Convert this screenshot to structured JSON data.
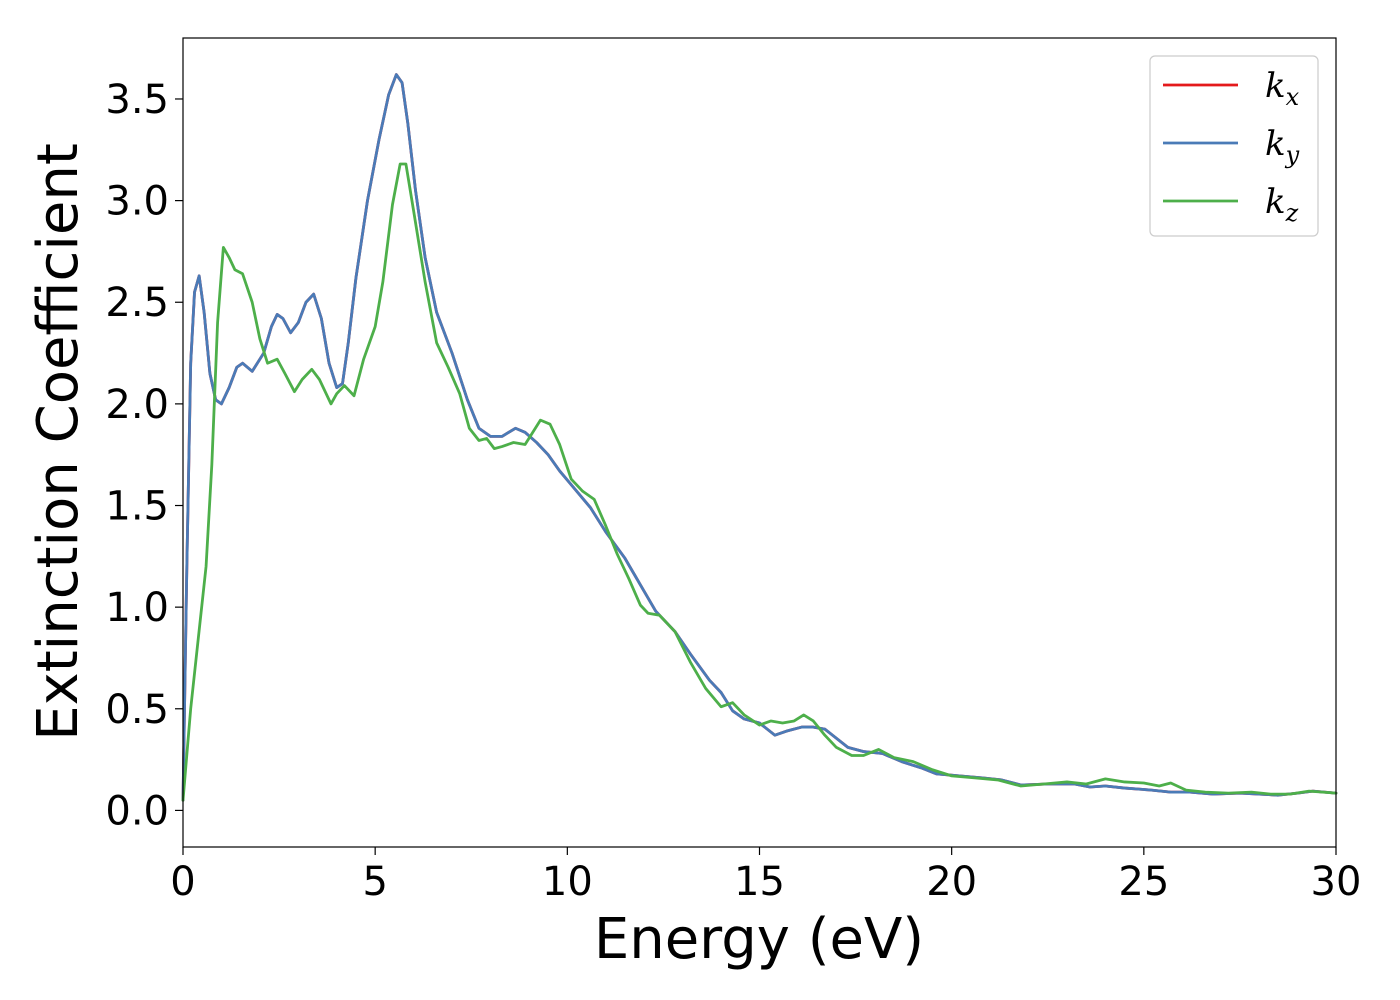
{
  "chart_data": {
    "type": "line",
    "title": "",
    "xlabel": "Energy (eV)",
    "ylabel": "Extinction Coefficient",
    "xlim": [
      0,
      30
    ],
    "ylim": [
      -0.18,
      3.8
    ],
    "x_ticks": [
      "0",
      "5",
      "10",
      "15",
      "20",
      "25",
      "30"
    ],
    "y_ticks": [
      "0.0",
      "0.5",
      "1.0",
      "1.5",
      "2.0",
      "2.5",
      "3.0",
      "3.5"
    ],
    "grid": false,
    "legend_position": "top-right",
    "series": [
      {
        "name": "k_x",
        "legend_base": "k",
        "legend_sub": "x",
        "color": "#e41a1c",
        "points": [
          [
            0,
            0.05
          ],
          [
            0.1,
            1.2
          ],
          [
            0.2,
            2.2
          ],
          [
            0.3,
            2.55
          ],
          [
            0.42,
            2.63
          ],
          [
            0.55,
            2.45
          ],
          [
            0.7,
            2.15
          ],
          [
            0.85,
            2.02
          ],
          [
            1.0,
            2.0
          ],
          [
            1.2,
            2.08
          ],
          [
            1.4,
            2.18
          ],
          [
            1.55,
            2.2
          ],
          [
            1.8,
            2.16
          ],
          [
            2.1,
            2.25
          ],
          [
            2.3,
            2.38
          ],
          [
            2.45,
            2.44
          ],
          [
            2.6,
            2.42
          ],
          [
            2.8,
            2.35
          ],
          [
            3.0,
            2.4
          ],
          [
            3.2,
            2.5
          ],
          [
            3.4,
            2.54
          ],
          [
            3.6,
            2.42
          ],
          [
            3.8,
            2.2
          ],
          [
            4.0,
            2.08
          ],
          [
            4.15,
            2.1
          ],
          [
            4.3,
            2.3
          ],
          [
            4.5,
            2.62
          ],
          [
            4.8,
            3.0
          ],
          [
            5.1,
            3.3
          ],
          [
            5.35,
            3.52
          ],
          [
            5.55,
            3.62
          ],
          [
            5.7,
            3.58
          ],
          [
            5.85,
            3.38
          ],
          [
            6.05,
            3.05
          ],
          [
            6.3,
            2.72
          ],
          [
            6.6,
            2.45
          ],
          [
            7.0,
            2.25
          ],
          [
            7.4,
            2.02
          ],
          [
            7.7,
            1.88
          ],
          [
            8.0,
            1.84
          ],
          [
            8.3,
            1.84
          ],
          [
            8.65,
            1.88
          ],
          [
            8.9,
            1.86
          ],
          [
            9.2,
            1.81
          ],
          [
            9.5,
            1.75
          ],
          [
            9.8,
            1.67
          ],
          [
            10.2,
            1.58
          ],
          [
            10.6,
            1.49
          ],
          [
            11.0,
            1.37
          ],
          [
            11.5,
            1.24
          ],
          [
            11.9,
            1.11
          ],
          [
            12.3,
            0.98
          ],
          [
            12.8,
            0.88
          ],
          [
            13.2,
            0.77
          ],
          [
            13.7,
            0.64
          ],
          [
            14.0,
            0.58
          ],
          [
            14.3,
            0.49
          ],
          [
            14.6,
            0.45
          ],
          [
            15.0,
            0.43
          ],
          [
            15.4,
            0.37
          ],
          [
            15.7,
            0.39
          ],
          [
            16.1,
            0.41
          ],
          [
            16.4,
            0.41
          ],
          [
            16.7,
            0.4
          ],
          [
            16.9,
            0.37
          ],
          [
            17.3,
            0.31
          ],
          [
            17.7,
            0.29
          ],
          [
            18.2,
            0.28
          ],
          [
            18.7,
            0.24
          ],
          [
            19.2,
            0.21
          ],
          [
            19.6,
            0.18
          ],
          [
            20.2,
            0.17
          ],
          [
            20.8,
            0.16
          ],
          [
            21.3,
            0.15
          ],
          [
            21.8,
            0.125
          ],
          [
            22.5,
            0.13
          ],
          [
            23.2,
            0.13
          ],
          [
            23.6,
            0.115
          ],
          [
            24.0,
            0.12
          ],
          [
            24.5,
            0.11
          ],
          [
            25.2,
            0.1
          ],
          [
            25.7,
            0.09
          ],
          [
            26.2,
            0.09
          ],
          [
            26.8,
            0.08
          ],
          [
            27.5,
            0.085
          ],
          [
            28.0,
            0.08
          ],
          [
            28.5,
            0.075
          ],
          [
            29.0,
            0.085
          ],
          [
            29.4,
            0.095
          ],
          [
            30.0,
            0.085
          ]
        ]
      },
      {
        "name": "k_y",
        "legend_base": "k",
        "legend_sub": "y",
        "color": "#4a7bb7",
        "points": [
          [
            0,
            0.05
          ],
          [
            0.1,
            1.2
          ],
          [
            0.2,
            2.2
          ],
          [
            0.3,
            2.55
          ],
          [
            0.42,
            2.63
          ],
          [
            0.55,
            2.45
          ],
          [
            0.7,
            2.15
          ],
          [
            0.85,
            2.02
          ],
          [
            1.0,
            2.0
          ],
          [
            1.2,
            2.08
          ],
          [
            1.4,
            2.18
          ],
          [
            1.55,
            2.2
          ],
          [
            1.8,
            2.16
          ],
          [
            2.1,
            2.25
          ],
          [
            2.3,
            2.38
          ],
          [
            2.45,
            2.44
          ],
          [
            2.6,
            2.42
          ],
          [
            2.8,
            2.35
          ],
          [
            3.0,
            2.4
          ],
          [
            3.2,
            2.5
          ],
          [
            3.4,
            2.54
          ],
          [
            3.6,
            2.42
          ],
          [
            3.8,
            2.2
          ],
          [
            4.0,
            2.08
          ],
          [
            4.15,
            2.1
          ],
          [
            4.3,
            2.3
          ],
          [
            4.5,
            2.62
          ],
          [
            4.8,
            3.0
          ],
          [
            5.1,
            3.3
          ],
          [
            5.35,
            3.52
          ],
          [
            5.55,
            3.62
          ],
          [
            5.7,
            3.58
          ],
          [
            5.85,
            3.38
          ],
          [
            6.05,
            3.05
          ],
          [
            6.3,
            2.72
          ],
          [
            6.6,
            2.45
          ],
          [
            7.0,
            2.25
          ],
          [
            7.4,
            2.02
          ],
          [
            7.7,
            1.88
          ],
          [
            8.0,
            1.84
          ],
          [
            8.3,
            1.84
          ],
          [
            8.65,
            1.88
          ],
          [
            8.9,
            1.86
          ],
          [
            9.2,
            1.81
          ],
          [
            9.5,
            1.75
          ],
          [
            9.8,
            1.67
          ],
          [
            10.2,
            1.58
          ],
          [
            10.6,
            1.49
          ],
          [
            11.0,
            1.37
          ],
          [
            11.5,
            1.24
          ],
          [
            11.9,
            1.11
          ],
          [
            12.3,
            0.98
          ],
          [
            12.8,
            0.88
          ],
          [
            13.2,
            0.77
          ],
          [
            13.7,
            0.64
          ],
          [
            14.0,
            0.58
          ],
          [
            14.3,
            0.49
          ],
          [
            14.6,
            0.45
          ],
          [
            15.0,
            0.43
          ],
          [
            15.4,
            0.37
          ],
          [
            15.7,
            0.39
          ],
          [
            16.1,
            0.41
          ],
          [
            16.4,
            0.41
          ],
          [
            16.7,
            0.4
          ],
          [
            16.9,
            0.37
          ],
          [
            17.3,
            0.31
          ],
          [
            17.7,
            0.29
          ],
          [
            18.2,
            0.28
          ],
          [
            18.7,
            0.24
          ],
          [
            19.2,
            0.21
          ],
          [
            19.6,
            0.18
          ],
          [
            20.2,
            0.17
          ],
          [
            20.8,
            0.16
          ],
          [
            21.3,
            0.15
          ],
          [
            21.8,
            0.125
          ],
          [
            22.5,
            0.13
          ],
          [
            23.2,
            0.13
          ],
          [
            23.6,
            0.115
          ],
          [
            24.0,
            0.12
          ],
          [
            24.5,
            0.11
          ],
          [
            25.2,
            0.1
          ],
          [
            25.7,
            0.09
          ],
          [
            26.2,
            0.09
          ],
          [
            26.8,
            0.08
          ],
          [
            27.5,
            0.085
          ],
          [
            28.0,
            0.08
          ],
          [
            28.5,
            0.075
          ],
          [
            29.0,
            0.085
          ],
          [
            29.4,
            0.095
          ],
          [
            30.0,
            0.085
          ]
        ]
      },
      {
        "name": "k_z",
        "legend_base": "k",
        "legend_sub": "z",
        "color": "#4daf4a",
        "points": [
          [
            0,
            0.05
          ],
          [
            0.2,
            0.5
          ],
          [
            0.4,
            0.85
          ],
          [
            0.6,
            1.2
          ],
          [
            0.75,
            1.7
          ],
          [
            0.9,
            2.4
          ],
          [
            1.05,
            2.77
          ],
          [
            1.2,
            2.72
          ],
          [
            1.35,
            2.66
          ],
          [
            1.55,
            2.64
          ],
          [
            1.8,
            2.5
          ],
          [
            2.0,
            2.32
          ],
          [
            2.2,
            2.2
          ],
          [
            2.45,
            2.22
          ],
          [
            2.65,
            2.15
          ],
          [
            2.9,
            2.06
          ],
          [
            3.1,
            2.12
          ],
          [
            3.35,
            2.17
          ],
          [
            3.55,
            2.12
          ],
          [
            3.85,
            2.0
          ],
          [
            4.0,
            2.05
          ],
          [
            4.2,
            2.09
          ],
          [
            4.45,
            2.04
          ],
          [
            4.7,
            2.22
          ],
          [
            5.0,
            2.38
          ],
          [
            5.2,
            2.6
          ],
          [
            5.45,
            2.98
          ],
          [
            5.65,
            3.18
          ],
          [
            5.8,
            3.18
          ],
          [
            6.0,
            2.95
          ],
          [
            6.3,
            2.6
          ],
          [
            6.6,
            2.3
          ],
          [
            6.9,
            2.18
          ],
          [
            7.2,
            2.05
          ],
          [
            7.45,
            1.88
          ],
          [
            7.7,
            1.82
          ],
          [
            7.9,
            1.83
          ],
          [
            8.1,
            1.78
          ],
          [
            8.3,
            1.79
          ],
          [
            8.6,
            1.81
          ],
          [
            8.9,
            1.8
          ],
          [
            9.1,
            1.86
          ],
          [
            9.3,
            1.92
          ],
          [
            9.55,
            1.9
          ],
          [
            9.8,
            1.8
          ],
          [
            10.1,
            1.63
          ],
          [
            10.4,
            1.57
          ],
          [
            10.7,
            1.53
          ],
          [
            11.0,
            1.4
          ],
          [
            11.3,
            1.26
          ],
          [
            11.6,
            1.14
          ],
          [
            11.9,
            1.01
          ],
          [
            12.1,
            0.97
          ],
          [
            12.4,
            0.96
          ],
          [
            12.8,
            0.88
          ],
          [
            13.2,
            0.73
          ],
          [
            13.6,
            0.6
          ],
          [
            14.0,
            0.51
          ],
          [
            14.3,
            0.53
          ],
          [
            14.6,
            0.47
          ],
          [
            15.0,
            0.42
          ],
          [
            15.3,
            0.44
          ],
          [
            15.6,
            0.43
          ],
          [
            15.9,
            0.44
          ],
          [
            16.15,
            0.47
          ],
          [
            16.4,
            0.44
          ],
          [
            16.7,
            0.37
          ],
          [
            17.0,
            0.31
          ],
          [
            17.4,
            0.27
          ],
          [
            17.7,
            0.27
          ],
          [
            18.1,
            0.3
          ],
          [
            18.5,
            0.26
          ],
          [
            19.0,
            0.24
          ],
          [
            19.5,
            0.2
          ],
          [
            20.0,
            0.17
          ],
          [
            20.6,
            0.16
          ],
          [
            21.2,
            0.15
          ],
          [
            21.8,
            0.12
          ],
          [
            22.4,
            0.13
          ],
          [
            23.0,
            0.14
          ],
          [
            23.5,
            0.13
          ],
          [
            24.0,
            0.155
          ],
          [
            24.5,
            0.14
          ],
          [
            25.0,
            0.135
          ],
          [
            25.4,
            0.12
          ],
          [
            25.7,
            0.135
          ],
          [
            26.1,
            0.1
          ],
          [
            26.6,
            0.09
          ],
          [
            27.2,
            0.085
          ],
          [
            27.8,
            0.09
          ],
          [
            28.3,
            0.08
          ],
          [
            28.8,
            0.08
          ],
          [
            29.3,
            0.095
          ],
          [
            30.0,
            0.085
          ]
        ]
      }
    ]
  }
}
